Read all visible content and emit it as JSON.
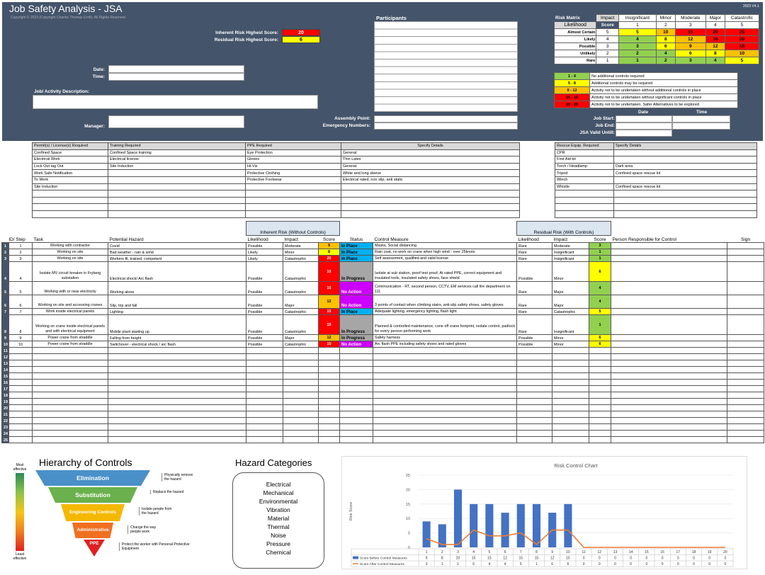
{
  "title": "Job Safety Analysis - JSA",
  "copyright": "Copyright © 2023 (Copyright Charles Thomas Croft). All Rights Reserved.",
  "version": "2023 V4.1",
  "inherent_label": "Inherent Risk Highest Score:",
  "inherent_value": "20",
  "residual_label": "Residual Risk Highest Score:",
  "residual_value": "6",
  "date_label": "Date:",
  "time_label": "Time:",
  "job_desc_label": "Job/ Activity Description:",
  "manager_label": "Manager:",
  "participants_label": "Participants",
  "assembly_label": "Assembly Point:",
  "emergency_label": "Emergency Numbers:",
  "job_start": "Job Start:",
  "job_end": "Job End:",
  "jsa_valid": "JSA Valid Untill:",
  "date_col": "Date",
  "time_col": "Time",
  "risk_matrix": {
    "title": "Risk Matrix",
    "impact": "Impact",
    "likelihood": "Likelihood",
    "score": "Score",
    "impacts": [
      "Insignificant",
      "Minor",
      "Moderate",
      "Major",
      "Catastrofic"
    ],
    "impact_nums": [
      "1",
      "2",
      "3",
      "4",
      "5"
    ],
    "rows": [
      {
        "name": "Almost Certain",
        "n": "5",
        "v": [
          "5",
          "10",
          "15",
          "20",
          "25"
        ],
        "c": [
          "yellow",
          "orange",
          "red",
          "red",
          "red"
        ]
      },
      {
        "name": "Likely",
        "n": "4",
        "v": [
          "4",
          "8",
          "12",
          "16",
          "20"
        ],
        "c": [
          "green",
          "yellow",
          "orange",
          "red",
          "red"
        ]
      },
      {
        "name": "Possible",
        "n": "3",
        "v": [
          "3",
          "6",
          "9",
          "12",
          "15"
        ],
        "c": [
          "green",
          "yellow",
          "orange",
          "orange",
          "red"
        ]
      },
      {
        "name": "Unlikely",
        "n": "2",
        "v": [
          "2",
          "4",
          "6",
          "8",
          "10"
        ],
        "c": [
          "green",
          "green",
          "yellow",
          "yellow",
          "orange"
        ]
      },
      {
        "name": "Rare",
        "n": "1",
        "v": [
          "1",
          "2",
          "3",
          "4",
          "5"
        ],
        "c": [
          "green",
          "green",
          "green",
          "green",
          "yellow"
        ]
      }
    ]
  },
  "legend": [
    {
      "range": "1 - 4",
      "text": "No additional controls required",
      "c": "green"
    },
    {
      "range": "5 - 8",
      "text": "Additional controls may be required",
      "c": "yellow"
    },
    {
      "range": "9 - 12",
      "text": "Activity not to be undertaken without additional controls in place",
      "c": "orange"
    },
    {
      "range": "15 - 16",
      "text": "Activity not to be undertaken without significant controls in place",
      "c": "red"
    },
    {
      "range": "20 - 25",
      "text": "Activity not to be undertaken. Safer Alternatives to be explored",
      "c": "dred"
    }
  ],
  "permits": {
    "headers": [
      "Permit(s) / License(s) Required",
      "Training Required",
      "PPE Required",
      "Specify Details"
    ],
    "rows": [
      [
        "Confined Space",
        "Confined Space training",
        "Eye Protection",
        "General"
      ],
      [
        "Electrical Work",
        "Electrical license",
        "Gloves",
        "Thin Latex"
      ],
      [
        "Lock Out tag Out",
        "Site Induction",
        "Hi-Viz",
        "General"
      ],
      [
        "Work Safe Notification",
        "",
        "Protective Clothing",
        "White and long sleeve"
      ],
      [
        "To Work",
        "",
        "Protective Footwear",
        "Electrical rated, non slip, anti static"
      ],
      [
        "Site Induction",
        "",
        "",
        ""
      ],
      [
        "",
        "",
        "",
        ""
      ],
      [
        "",
        "",
        "",
        ""
      ],
      [
        "",
        "",
        "",
        ""
      ],
      [
        "",
        "",
        "",
        ""
      ]
    ]
  },
  "rescue": {
    "headers": [
      "Rescue Equip. Required",
      "Specify Details"
    ],
    "rows": [
      [
        "CPR",
        ""
      ],
      [
        "First Aid kit",
        ""
      ],
      [
        "Torch / Headlamp",
        "Dark area"
      ],
      [
        "Tripod",
        "Confined space rescue kit"
      ],
      [
        "Winch",
        ""
      ],
      [
        "Whistle",
        "Confined space rescue kit"
      ],
      [
        "",
        ""
      ],
      [
        "",
        ""
      ],
      [
        "",
        ""
      ],
      [
        "",
        ""
      ]
    ]
  },
  "main": {
    "inherent_group": "Inherent Risk (Without Controls)",
    "residual_group": "Residual Risk (With Controls)",
    "headers": {
      "id": "ID/ Step",
      "task": "Task",
      "hazard": "Potential Hazard",
      "lik": "Likelihood",
      "imp": "Impact",
      "score": "Score",
      "status": "Status",
      "control": "Control Measure",
      "rlik": "Likelihood",
      "rimp": "Impact",
      "rscore": "Score",
      "person": "Person Responsible for Control",
      "sign": "Sign"
    },
    "rows": [
      {
        "n": "1",
        "id": "1",
        "task": "Working with contractor",
        "hazard": "Covid",
        "lik": "Possible",
        "imp": "Moderate",
        "s": "9",
        "sc": "orange",
        "st": "In Place",
        "stc": "sinp",
        "ctrl": "Masks, Social distancing",
        "rlik": "Rare",
        "rimp": "Moderate",
        "rs": "3",
        "rsc": "green",
        "h": 1
      },
      {
        "n": "2",
        "id": "2",
        "task": "Working on site",
        "hazard": "Bad weather - rain & wind",
        "lik": "Likely",
        "imp": "Minor",
        "s": "8",
        "sc": "yellow",
        "st": "In Place",
        "stc": "sinp",
        "ctrl": "Rain coat, no work on crane when high wind - over 25knots",
        "rlik": "Rare",
        "rimp": "Insignificant",
        "rs": "1",
        "rsc": "green",
        "h": 1
      },
      {
        "n": "3",
        "id": "3",
        "task": "Working on site",
        "hazard": "Workers fit, trained, competent",
        "lik": "Likely",
        "imp": "Catastrophic",
        "s": "20",
        "sc": "red",
        "st": "In Place",
        "stc": "sinp",
        "ctrl": "Self assessment, qualified and valid license",
        "rlik": "Rare",
        "rimp": "Insignificant",
        "rs": "1",
        "rsc": "green",
        "h": 1
      },
      {
        "n": "4",
        "id": "4",
        "task": "Isolate MV circuit breaker in Fryberg substation",
        "hazard": "Electrical shock/ Arc flash",
        "lik": "Possible",
        "imp": "Catastrophic",
        "s": "15",
        "sc": "red",
        "st": "In Progress",
        "stc": "sprog",
        "ctrl": "Isolate at sub station, proof test proof, At rated PPE, correct equipment and insulated tools, insulated safety shoes, face shield",
        "rlik": "Possible",
        "rimp": "Minor",
        "rs": "6",
        "rsc": "yellow",
        "h": 3
      },
      {
        "n": "5",
        "id": "5",
        "task": "Working with or near electricity",
        "hazard": "Working alone",
        "lik": "Possible",
        "imp": "Catastrophic",
        "s": "15",
        "sc": "red",
        "st": "No Action",
        "stc": "snoa",
        "ctrl": "Communication - RT, second person, CCTV, EM services call fire department on 111",
        "rlik": "Rare",
        "rimp": "Major",
        "rs": "4",
        "rsc": "green",
        "h": 2
      },
      {
        "n": "6",
        "id": "6",
        "task": "Working on site and accessing cranes",
        "hazard": "Slip, trip and fall",
        "lik": "Possible",
        "imp": "Major",
        "s": "12",
        "sc": "orange",
        "st": "No Action",
        "stc": "snoa",
        "ctrl": "3 points of contact when climbing stairs, anti-slip safety shoes, safety gloves",
        "rlik": "Rare",
        "rimp": "Major",
        "rs": "4",
        "rsc": "green",
        "h": 2
      },
      {
        "n": "7",
        "id": "7",
        "task": "Work inside electrical panels",
        "hazard": "Lighting",
        "lik": "Possible",
        "imp": "Catastrophic",
        "s": "15",
        "sc": "red",
        "st": "In Place",
        "stc": "sinp",
        "ctrl": "Adequate lighting, emergency lighting, flash light",
        "rlik": "Rare",
        "rimp": "Catastrophic",
        "rs": "5",
        "rsc": "yellow",
        "h": 1
      },
      {
        "n": "8",
        "id": "8",
        "task": "Working on crane inside electrical panels and with electrical equipment",
        "hazard": "Mobile plant starting up",
        "lik": "Possible",
        "imp": "Catastrophic",
        "s": "15",
        "sc": "red",
        "st": "In Progress",
        "stc": "sprog",
        "ctrl": "Planned & controlled maintenance, cone off crane footprint, isolate control, padlock for every person performing work",
        "rlik": "Rare",
        "rimp": "Insignificant",
        "rs": "1",
        "rsc": "green",
        "h": 3
      },
      {
        "n": "9",
        "id": "9",
        "task": "Power crane from straddle",
        "hazard": "Falling from height",
        "lik": "Possible",
        "imp": "Major",
        "s": "12",
        "sc": "orange",
        "st": "In Progress",
        "stc": "sprog",
        "ctrl": "Safety harness",
        "rlik": "Possible",
        "rimp": "Minor",
        "rs": "6",
        "rsc": "yellow",
        "h": 1
      },
      {
        "n": "10",
        "id": "10",
        "task": "Power crane from straddle",
        "hazard": "Switchover - electrical shock / arc flash",
        "lik": "Possible",
        "imp": "Catastrophic",
        "s": "15",
        "sc": "red",
        "st": "No Action",
        "stc": "snoa",
        "ctrl": "Arc flash PPE including safety shoes and rated gloves",
        "rlik": "Possible",
        "rimp": "Minor",
        "rs": "6",
        "rsc": "yellow",
        "h": 1
      }
    ],
    "empty_nums": [
      "11",
      "12",
      "13",
      "14",
      "15",
      "16",
      "17",
      "18",
      "19",
      "20",
      "21",
      "22",
      "23",
      "24",
      "25"
    ]
  },
  "hoc": {
    "title": "Hierarchy of Controls",
    "most": "Most effective",
    "least": "Least effective",
    "tiers": [
      {
        "name": "Elimination",
        "desc": "Physically remove the hazard",
        "color": "#4a90c8"
      },
      {
        "name": "Substitution",
        "desc": "Replace the hazard",
        "color": "#6ab04c"
      },
      {
        "name": "Engineering Controls",
        "desc": "Isolate people from the hazard",
        "color": "#f5b800"
      },
      {
        "name": "Administrative Controls",
        "desc": "Change the way people work",
        "color": "#f07020"
      },
      {
        "name": "PPE",
        "desc": "Protect the worker with Personal Protective Equipment",
        "color": "#e02020"
      }
    ]
  },
  "hazard_categories": {
    "title": "Hazard Categories",
    "items": [
      "Electrical",
      "Mechanical",
      "Environmental",
      "Vibration",
      "Material",
      "Thermal",
      "Noise",
      "Pressure",
      "Chemical"
    ]
  },
  "chart_data": {
    "type": "bar",
    "title": "Risk Control Chart",
    "ylabel": "Risk Score",
    "ylim": [
      0,
      25
    ],
    "yticks": [
      0,
      5,
      10,
      15,
      20,
      25
    ],
    "categories": [
      "1",
      "2",
      "3",
      "4",
      "5",
      "6",
      "7",
      "8",
      "9",
      "10",
      "11",
      "12",
      "13",
      "14",
      "15",
      "16",
      "17",
      "18",
      "19",
      "20"
    ],
    "series": [
      {
        "name": "Score before Control Measures",
        "type": "bar",
        "color": "#4472c4",
        "values": [
          9,
          8,
          20,
          15,
          15,
          12,
          15,
          15,
          12,
          15,
          0,
          0,
          0,
          0,
          0,
          0,
          0,
          0,
          0,
          0
        ]
      },
      {
        "name": "Score After Control Measures",
        "type": "line",
        "color": "#ed7d31",
        "values": [
          3,
          1,
          1,
          6,
          4,
          4,
          5,
          1,
          6,
          6,
          0,
          0,
          0,
          0,
          0,
          0,
          0,
          0,
          0,
          0
        ]
      }
    ]
  }
}
